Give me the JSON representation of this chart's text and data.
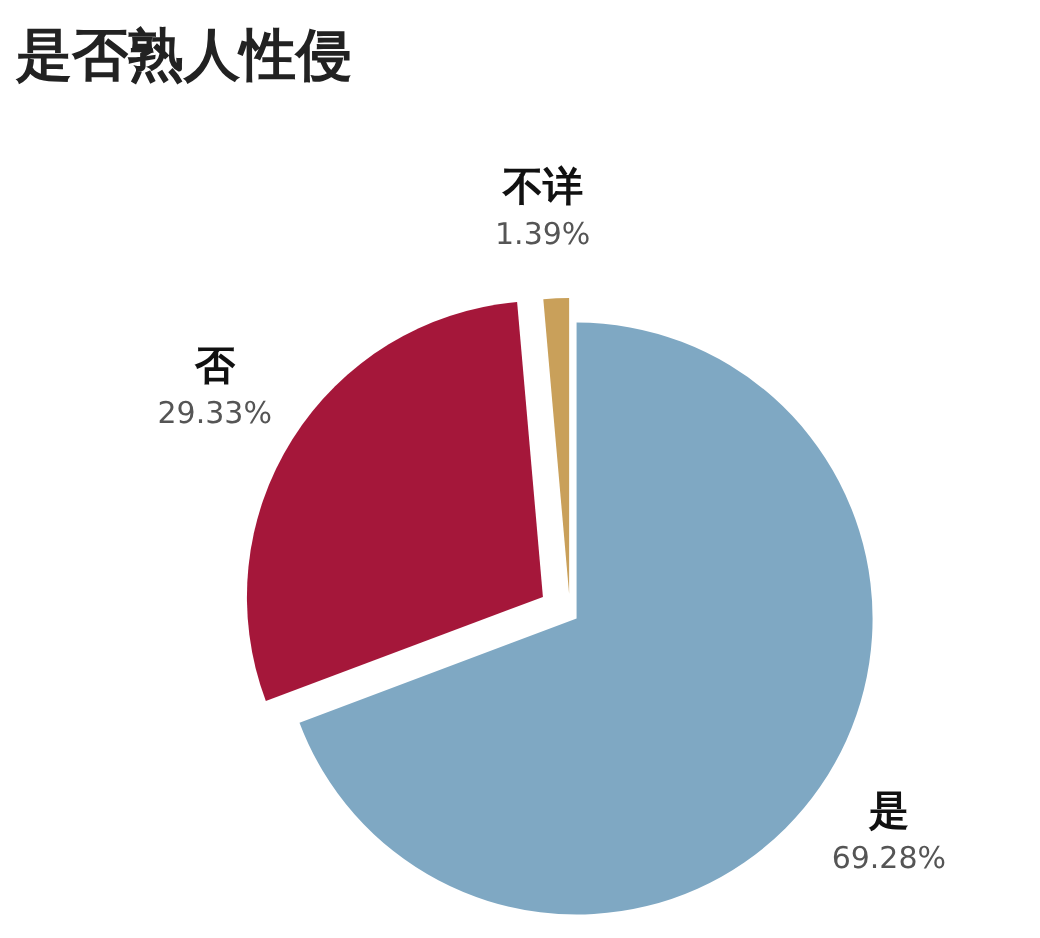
{
  "chart_data": {
    "type": "pie",
    "title": "是否熟人性侵",
    "categories": [
      "是",
      "否",
      "不详"
    ],
    "values": [
      69.28,
      29.33,
      1.39
    ],
    "value_labels": [
      "69.28%",
      "29.33%",
      "1.39%"
    ],
    "colors": [
      "#7fa8c3",
      "#a5173a",
      "#c9a05a"
    ]
  }
}
